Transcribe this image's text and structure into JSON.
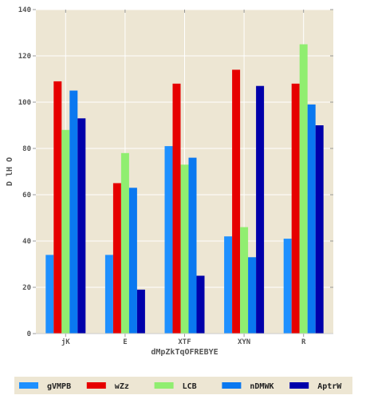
{
  "chart_data": {
    "type": "bar",
    "title": "",
    "xlabel": "dMpZkTqOFREBYE",
    "ylabel": "D lH O",
    "ylim": [
      0,
      140
    ],
    "yticks": [
      0,
      20,
      40,
      60,
      80,
      100,
      120,
      140
    ],
    "categories": [
      "jK",
      "E",
      "XTF",
      "XYN",
      "R"
    ],
    "grid": true,
    "legend_position": "bottom",
    "series": [
      {
        "name": "gVMPB",
        "color": "#1e90ff",
        "values": [
          34,
          34,
          81,
          42,
          41
        ]
      },
      {
        "name": "wZz",
        "color": "#e60000",
        "values": [
          109,
          65,
          108,
          114,
          108
        ]
      },
      {
        "name": "LCB",
        "color": "#90ee70",
        "values": [
          88,
          78,
          73,
          46,
          125
        ]
      },
      {
        "name": "nDMWK",
        "color": "#0a78f0",
        "values": [
          105,
          63,
          76,
          33,
          99
        ]
      },
      {
        "name": "AptrW",
        "color": "#0000aa",
        "values": [
          93,
          19,
          25,
          107,
          90
        ]
      }
    ],
    "colors": {
      "plot_background": "#ede6d3",
      "grid": "#ffffff",
      "legend_background": "#ede6d3"
    }
  }
}
